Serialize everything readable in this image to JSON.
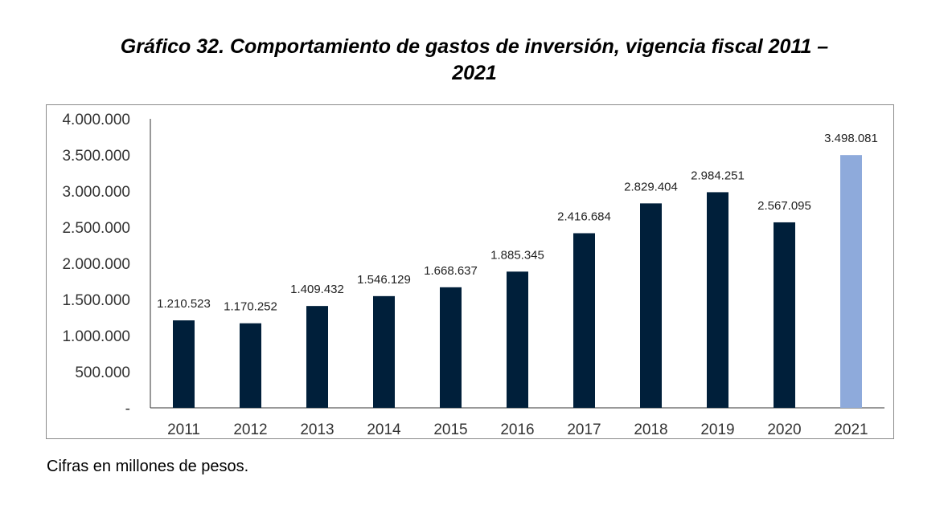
{
  "page": {
    "title_line1": "Gráfico 32. Comportamiento de gastos de inversión, vigencia fiscal 2011 –",
    "title_line2": "2021",
    "note": "Cifras en millones de pesos."
  },
  "colors": {
    "bar_default": "#001f3a",
    "bar_highlight": "#8eaadb",
    "axis": "#333333",
    "text": "#222222"
  },
  "chart_data": {
    "type": "bar",
    "title": "Gráfico 32. Comportamiento de gastos de inversión, vigencia fiscal 2011 – 2021",
    "xlabel": "",
    "ylabel": "",
    "categories": [
      "2011",
      "2012",
      "2013",
      "2014",
      "2015",
      "2016",
      "2017",
      "2018",
      "2019",
      "2020",
      "2021"
    ],
    "values": [
      1210523,
      1170252,
      1409432,
      1546129,
      1668637,
      1885345,
      2416684,
      2829404,
      2984251,
      2567095,
      3498081
    ],
    "value_labels": [
      "1.210.523",
      "1.170.252",
      "1.409.432",
      "1.546.129",
      "1.668.637",
      "1.885.345",
      "2.416.684",
      "2.829.404",
      "2.984.251",
      "2.567.095",
      "3.498.081"
    ],
    "highlight_index": 10,
    "ylim": [
      0,
      4000000
    ],
    "y_ticks": [
      0,
      500000,
      1000000,
      1500000,
      2000000,
      2500000,
      3000000,
      3500000,
      4000000
    ],
    "y_tick_labels": [
      "-",
      "500.000",
      "1.000.000",
      "1.500.000",
      "2.000.000",
      "2.500.000",
      "3.000.000",
      "3.500.000",
      "4.000.000"
    ],
    "grid": false,
    "legend": "none"
  }
}
